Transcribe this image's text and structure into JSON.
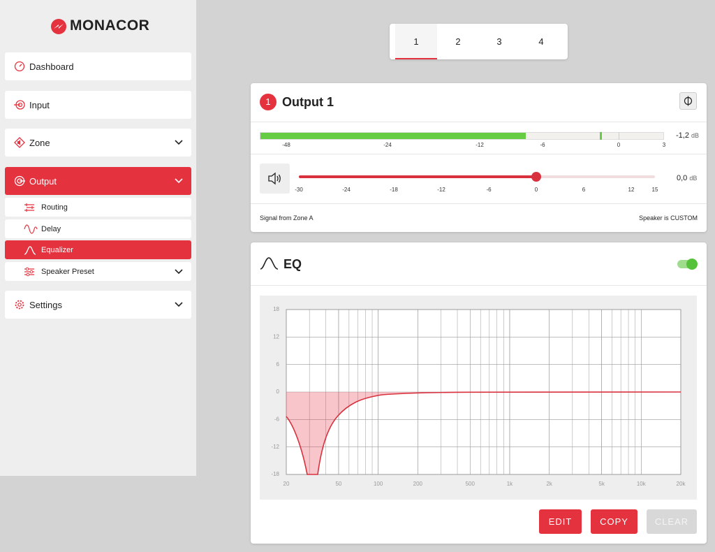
{
  "sidebar": {
    "logo": "MONACOR",
    "menu": [
      "Dashboard",
      "Input",
      "Zone",
      "Output"
    ],
    "submenu": [
      "Routing",
      "Delay",
      "Equalizer",
      "Speaker Preset"
    ],
    "settings": "Settings"
  },
  "tabs": [
    "1",
    "2",
    "3",
    "4"
  ],
  "output": {
    "badge": "1",
    "title": "Output 1",
    "meter": {
      "ticks": [
        "-48",
        "-24",
        "-12",
        "-6",
        "0",
        "3"
      ],
      "level": "-1,2",
      "unit": "dB"
    },
    "slider": {
      "ticks": [
        "-30",
        "-24",
        "-18",
        "-12",
        "-6",
        "0",
        "6",
        "12",
        "15"
      ],
      "value": "0,0",
      "unit": "dB"
    },
    "signal": "Signal from Zone A",
    "speaker": "Speaker is CUSTOM"
  },
  "eq": {
    "title": "EQ",
    "chart": {
      "type": "line",
      "xscale": "log",
      "xlim": [
        20,
        20000
      ],
      "ylim": [
        -18,
        18
      ],
      "xticks": [
        20,
        50,
        100,
        200,
        500,
        {
          "value": 1000,
          "label": "1k"
        },
        {
          "value": 2000,
          "label": "2k"
        },
        {
          "value": 5000,
          "label": "5k"
        },
        {
          "value": 10000,
          "label": "10k"
        },
        {
          "value": 20000,
          "label": "20k"
        }
      ],
      "yticks": [
        18,
        12,
        6,
        0,
        -6,
        -12,
        -18
      ],
      "grid": true,
      "color": "#d9303e"
    }
  },
  "buttons": [
    "EDIT",
    "COPY",
    "CLEAR"
  ]
}
